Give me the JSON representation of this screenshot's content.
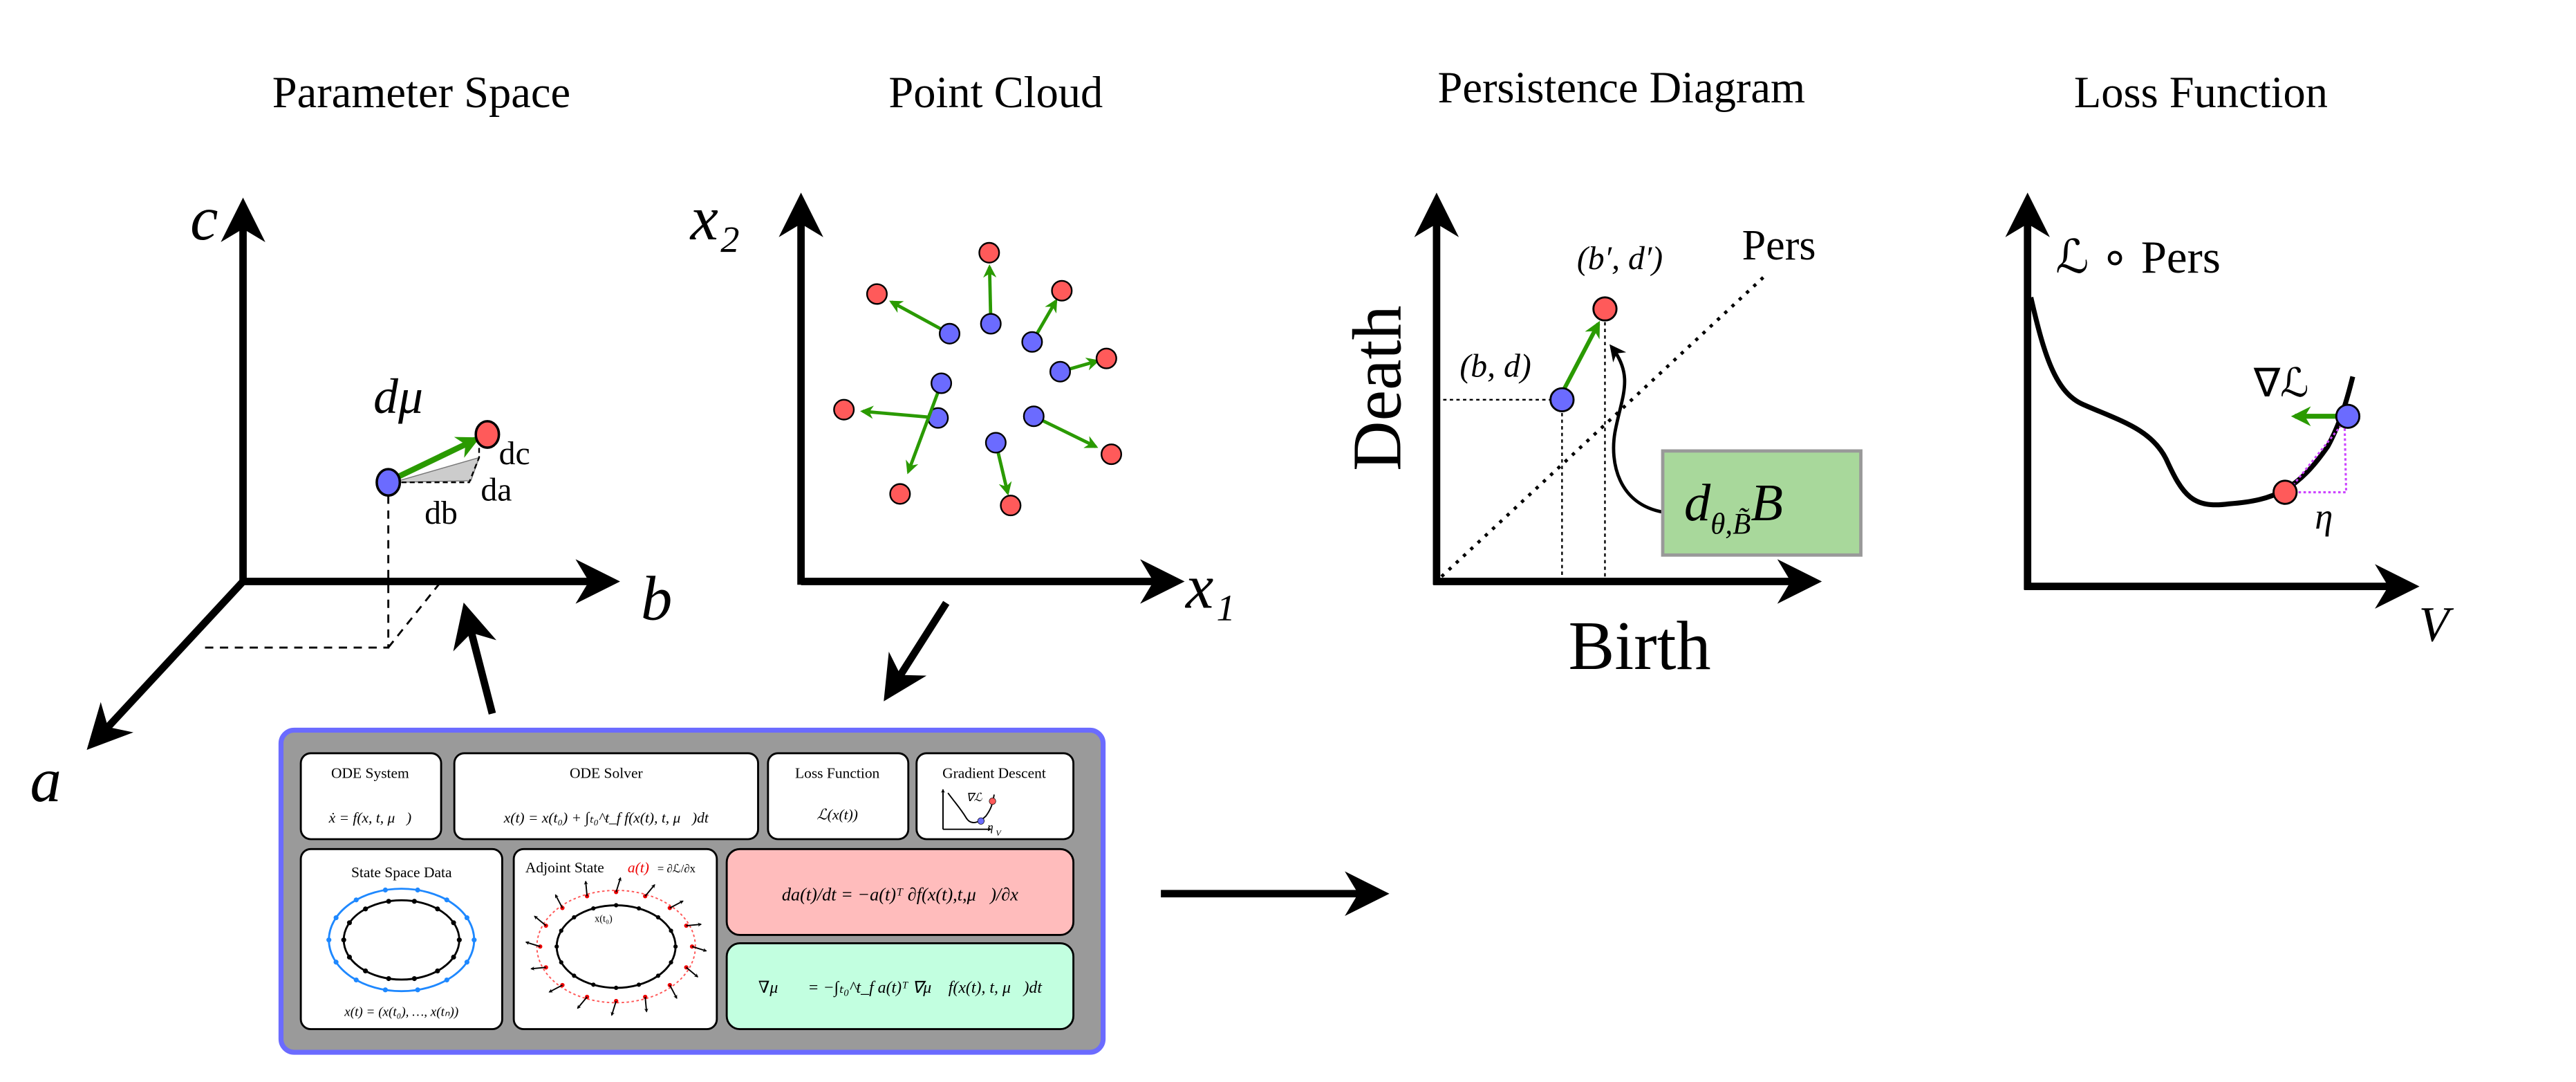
{
  "titles": {
    "parameter_space": "Parameter Space",
    "point_cloud": "Point Cloud",
    "persistence_diagram": "Persistence Diagram",
    "loss_function": "Loss Function"
  },
  "parameter_space": {
    "axis_a": "a",
    "axis_b": "b",
    "axis_c": "c",
    "d_mu": "dμ⃗",
    "dc": "dc",
    "da": "da",
    "db": "db"
  },
  "point_cloud": {
    "axis_x1": "x₁",
    "axis_x2": "x₂"
  },
  "persistence": {
    "xlabel": "Birth",
    "ylabel": "Death",
    "point_bd": "(b, d)",
    "point_bd_prime": "(b′, d′)",
    "diagonal_label": "Pers",
    "box_label": "d",
    "box_sub": "θ,B̃",
    "box_tail": "B"
  },
  "loss": {
    "ylabel": "ℒ ∘ Pers",
    "xlabel": "V",
    "grad": "∇ℒ",
    "eta": "η"
  },
  "pipeline": {
    "ode_system": {
      "title": "ODE System",
      "eq": "ẋ = f(x, t, μ⃗)"
    },
    "ode_solver": {
      "title": "ODE Solver",
      "eq": "x(t) = x(t₀) + ∫ₜ₀^t_f f(x(t), t, μ⃗)dt"
    },
    "loss_function": {
      "title": "Loss Function",
      "eq": "ℒ(x(t))"
    },
    "gradient_descent": {
      "title": "Gradient Descent",
      "grad": "∇ℒ",
      "eta": "η",
      "v": "V"
    },
    "state_space": {
      "title": "State Space Data",
      "eq": "x(t) = (x(t₀), …, x(tₙ))"
    },
    "adjoint_state": {
      "title": "Adjoint State",
      "a": "a(t)",
      "eq": "= ∂ℒ/∂x",
      "x0": "x(t₀)"
    },
    "adjoint_eq": "da(t)/dt = −a(t)ᵀ ∂f(x(t),t,μ⃗)/∂x",
    "gradient_eq": "∇μ⃗ℒ = −∫ₜ₀^t_f a(t)ᵀ ∇μ⃗ f(x(t), t, μ⃗)dt"
  },
  "colors": {
    "blue_point": "#6b6bff",
    "red_point": "#ff5a5a",
    "green_arrow": "#2a9a00",
    "box_gray": "#9a9a9a",
    "box_border": "#6b6bff",
    "pink": "#ffbcbc",
    "mint": "#c2ffe0",
    "green_box": "#a8d89b",
    "magenta": "#cc44ff",
    "state_blue": "#1e88ff"
  }
}
